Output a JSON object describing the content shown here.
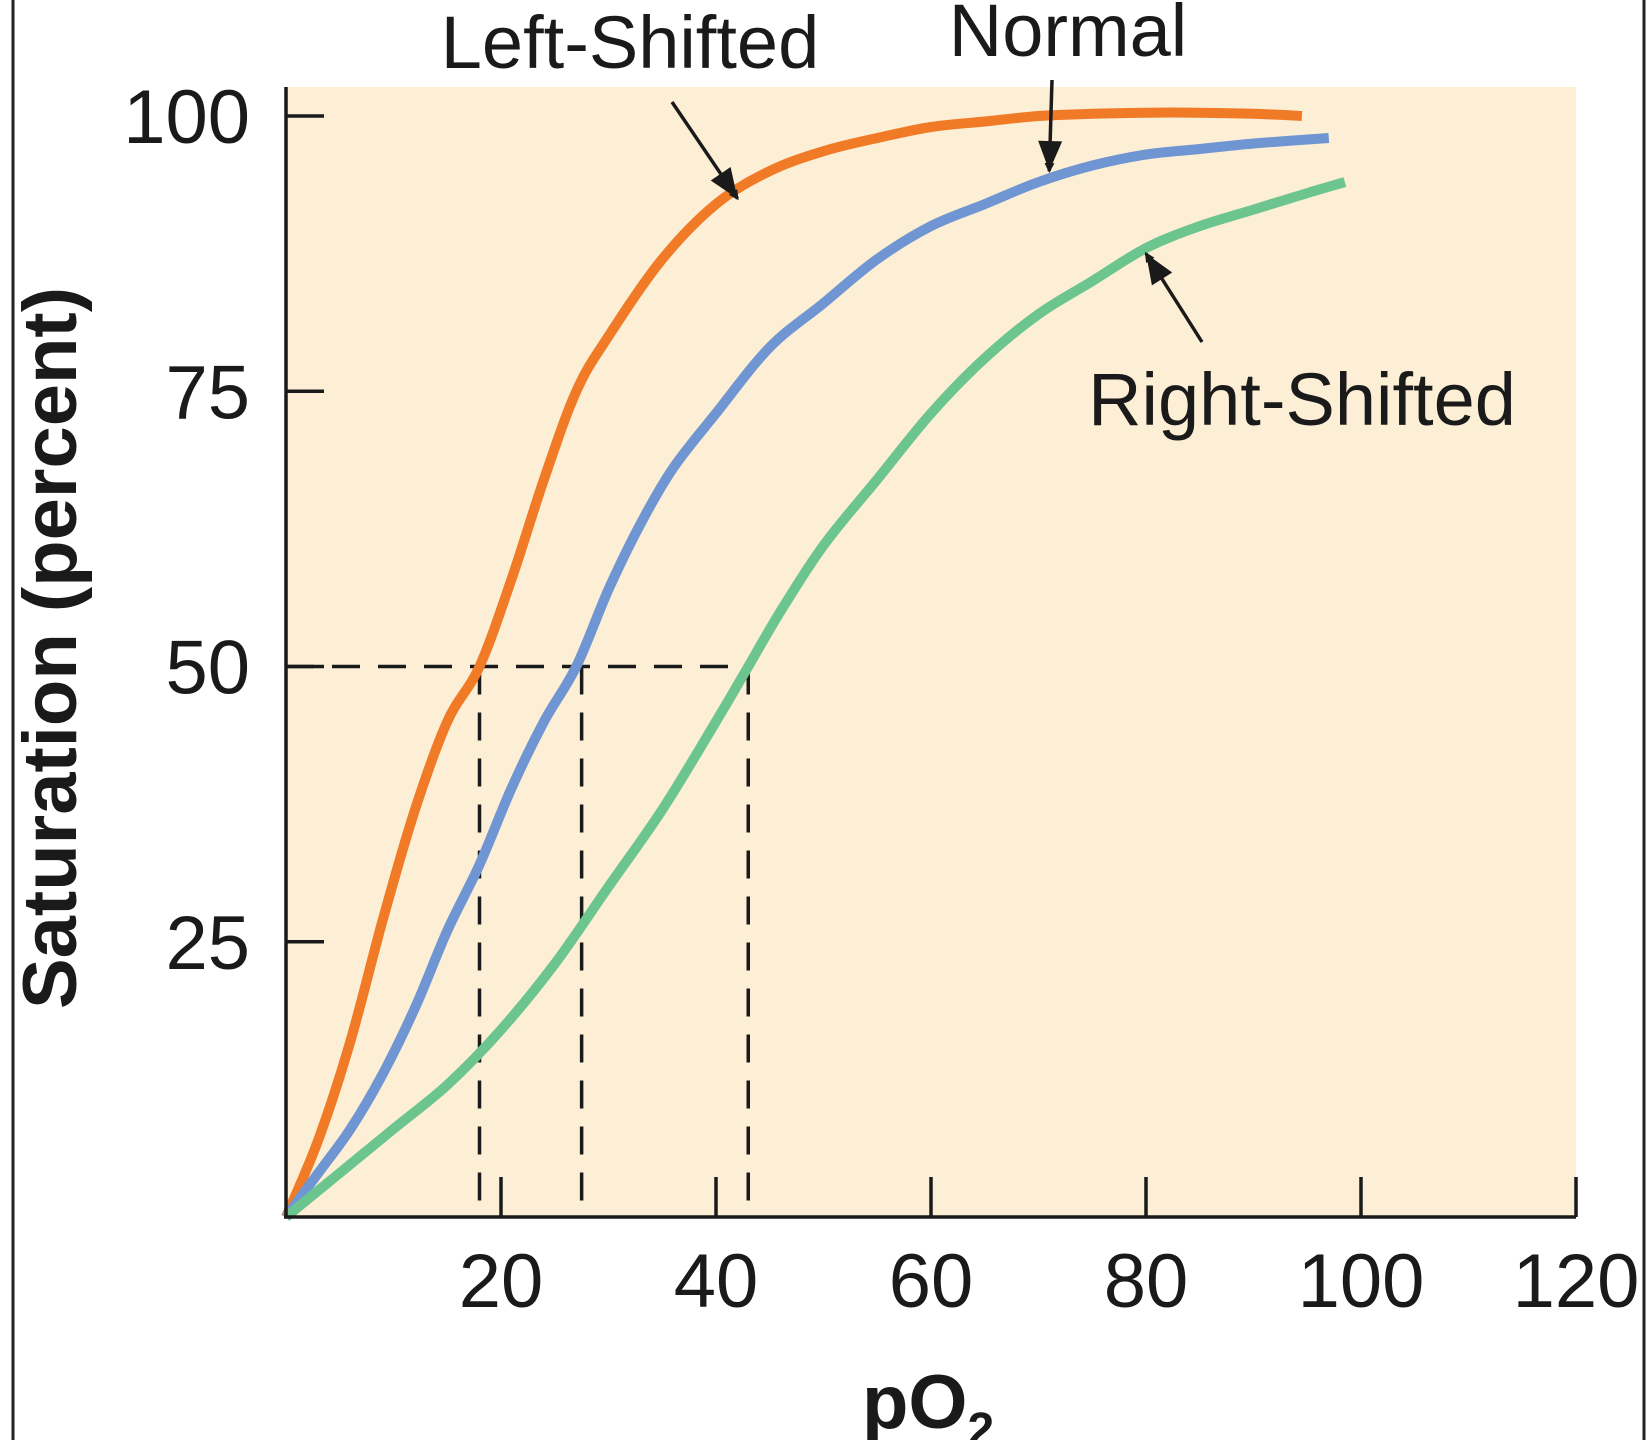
{
  "chart_data": {
    "type": "line",
    "title": "",
    "xlabel": "pO",
    "xlabel_sub": "2",
    "ylabel": "Saturation (percent)",
    "xlim": [
      0,
      120
    ],
    "ylim": [
      0,
      103
    ],
    "x_ticks": [
      20,
      40,
      60,
      80,
      100,
      120
    ],
    "x_tick_labels": [
      "20",
      "40",
      "60",
      "80",
      "100",
      "120"
    ],
    "y_ticks": [
      25,
      50,
      75,
      100
    ],
    "y_tick_labels": [
      "25",
      "50",
      "75",
      "100"
    ],
    "grid": false,
    "background": "#fdefd6",
    "series": [
      {
        "name": "Left-Shifted",
        "color": "#f07a26",
        "x": [
          0,
          3,
          6,
          9,
          12,
          15,
          18,
          21,
          24,
          27,
          30,
          35,
          40,
          45,
          50,
          55,
          60,
          65,
          70,
          75,
          80,
          85,
          90,
          94.5
        ],
        "y": [
          0,
          7,
          16,
          27,
          37,
          45,
          50,
          58,
          67,
          75,
          80,
          87,
          92,
          95,
          96.8,
          98,
          99,
          99.5,
          100,
          100.2,
          100.3,
          100.3,
          100.2,
          100
        ]
      },
      {
        "name": "Normal",
        "color": "#6f96d2",
        "x": [
          0,
          3,
          6,
          9,
          12,
          15,
          18,
          21,
          24,
          27,
          30,
          33,
          36,
          40,
          45,
          50,
          55,
          60,
          65,
          70,
          75,
          80,
          85,
          90,
          97
        ],
        "y": [
          0,
          4,
          8,
          13,
          19,
          26,
          32,
          39,
          45,
          50,
          57,
          63,
          68,
          73,
          79,
          83,
          87,
          90,
          92,
          94,
          95.5,
          96.5,
          97,
          97.5,
          98
        ]
      },
      {
        "name": "Right-Shifted",
        "color": "#6cc58f",
        "x": [
          0,
          5,
          10,
          15,
          20,
          25,
          30,
          35,
          40,
          43,
          46,
          50,
          55,
          60,
          65,
          70,
          75,
          80,
          85,
          90,
          95,
          98.5
        ],
        "y": [
          0,
          4,
          8,
          12,
          17,
          23,
          30,
          37,
          45,
          50,
          55,
          61,
          67,
          73,
          78,
          82,
          85,
          88,
          90,
          91.5,
          93,
          94
        ]
      }
    ],
    "p50_guides": [
      {
        "series": "Left-Shifted",
        "x": 18,
        "y": 50
      },
      {
        "series": "Normal",
        "x": 27.5,
        "y": 50
      },
      {
        "series": "Right-Shifted",
        "x": 43,
        "y": 50
      }
    ],
    "annotations": [
      {
        "series": "Left-Shifted",
        "text": "Left-Shifted",
        "arrow_to": [
          42,
          92.5
        ]
      },
      {
        "series": "Normal",
        "text": "Normal",
        "arrow_to": [
          71,
          95
        ]
      },
      {
        "series": "Right-Shifted",
        "text": "Right-Shifted",
        "arrow_to": [
          80,
          87.5
        ]
      }
    ]
  }
}
